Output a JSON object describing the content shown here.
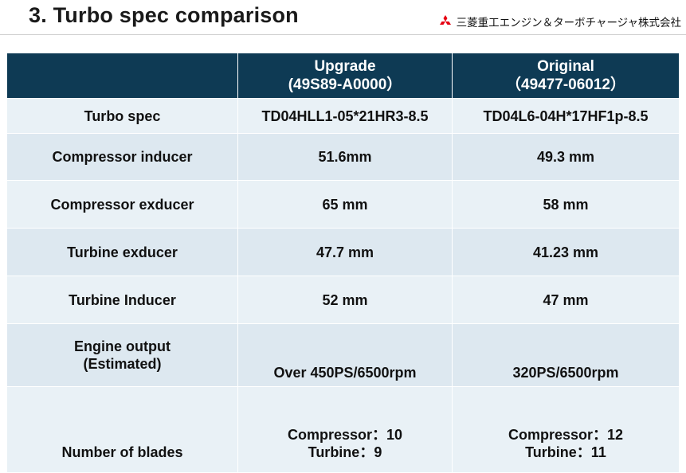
{
  "header": {
    "title": "3. Turbo spec comparison",
    "company": "三菱重工エンジン＆ターボチャージャ株式会社",
    "logo_icon": "three-diamonds-icon",
    "logo_color": "#e60012"
  },
  "table": {
    "columns": [
      {
        "name": "",
        "part": ""
      },
      {
        "name": "Upgrade",
        "part": "(49S89-A0000）"
      },
      {
        "name": "Original",
        "part": "（49477-06012）"
      }
    ],
    "rows": [
      {
        "label": [
          "Turbo spec"
        ],
        "upgrade": [
          "TD04HLL1-05*21HR3-8.5"
        ],
        "original": [
          "TD04L6-04H*17HF1p-8.5"
        ]
      },
      {
        "label": [
          "Compressor inducer"
        ],
        "upgrade": [
          "51.6mm"
        ],
        "original": [
          "49.3 mm"
        ]
      },
      {
        "label": [
          "Compressor exducer"
        ],
        "upgrade": [
          "65 mm"
        ],
        "original": [
          "58 mm"
        ]
      },
      {
        "label": [
          "Turbine exducer"
        ],
        "upgrade": [
          "47.7 mm"
        ],
        "original": [
          "41.23 mm"
        ]
      },
      {
        "label": [
          "Turbine Inducer"
        ],
        "upgrade": [
          "52 mm"
        ],
        "original": [
          "47 mm"
        ]
      },
      {
        "label": [
          "Engine output",
          "(Estimated)"
        ],
        "upgrade": [
          "Over 450PS/6500rpm"
        ],
        "original": [
          "320PS/6500rpm"
        ]
      },
      {
        "label": [
          "Number of blades"
        ],
        "upgrade": [
          "Compressor：10",
          "Turbine：9"
        ],
        "original": [
          "Compressor：12",
          "Turbine：11"
        ]
      }
    ],
    "header_color": "#0e3a54",
    "band_colors": [
      "#e9f1f6",
      "#dde8f0"
    ]
  }
}
